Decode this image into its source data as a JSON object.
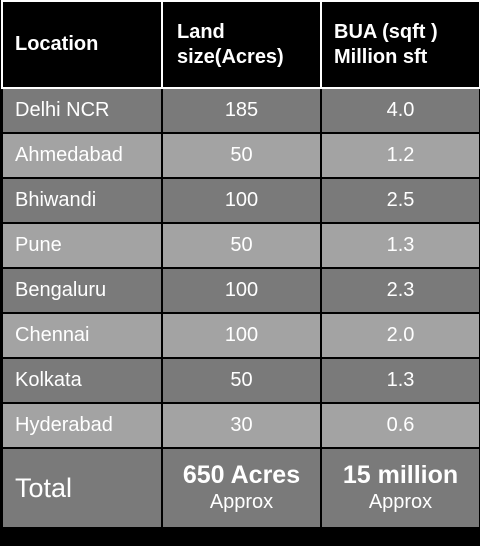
{
  "header": {
    "location": "Location",
    "land_size_line1": "Land",
    "land_size_line2": "size(Acres)",
    "bua_line1": "BUA (sqft )",
    "bua_line2": "Million sft"
  },
  "rows": [
    {
      "location": "Delhi NCR",
      "land": "185",
      "bua": "4.0"
    },
    {
      "location": "Ahmedabad",
      "land": "50",
      "bua": "1.2"
    },
    {
      "location": "Bhiwandi",
      "land": "100",
      "bua": "2.5"
    },
    {
      "location": "Pune",
      "land": "50",
      "bua": "1.3"
    },
    {
      "location": "Bengaluru",
      "land": "100",
      "bua": "2.3"
    },
    {
      "location": "Chennai",
      "land": "100",
      "bua": "2.0"
    },
    {
      "location": "Kolkata",
      "land": "50",
      "bua": "1.3"
    },
    {
      "location": "Hyderabad",
      "land": "30",
      "bua": "0.6"
    }
  ],
  "total": {
    "label": "Total",
    "land": "650 Acres",
    "land_note": "Approx",
    "bua": "15 million",
    "bua_note": "Approx"
  },
  "colors": {
    "header_bg": "#000000",
    "row_dark": "#7a7a7a",
    "row_light": "#a3a3a3",
    "text": "#ffffff"
  }
}
